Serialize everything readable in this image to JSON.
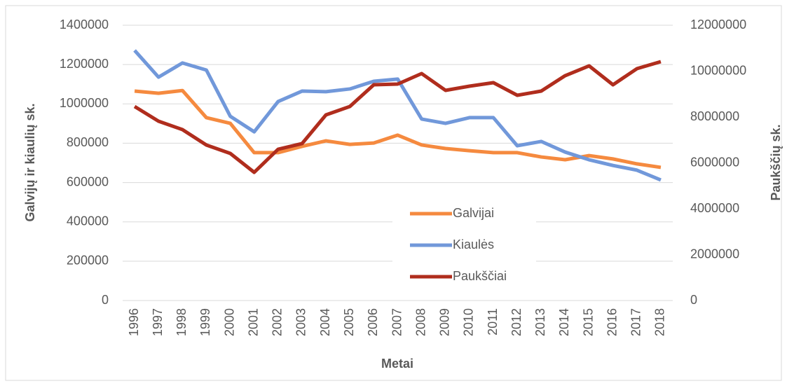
{
  "chart_data": {
    "type": "line",
    "x_label": "Metai",
    "y_label": "Galvijų ir kiaulių sk.",
    "y2_label": "Paukščių sk.",
    "categories": [
      "1996",
      "1997",
      "1998",
      "1999",
      "2000",
      "2001",
      "2002",
      "2003",
      "2004",
      "2005",
      "2006",
      "2007",
      "2008",
      "2009",
      "2010",
      "2011",
      "2012",
      "2013",
      "2014",
      "2015",
      "2016",
      "2017",
      "2018"
    ],
    "ylim": [
      0,
      1400000
    ],
    "yticks": [
      0,
      200000,
      400000,
      600000,
      800000,
      1000000,
      1200000,
      1400000
    ],
    "y2lim": [
      0,
      12000000
    ],
    "y2ticks": [
      0,
      2000000,
      4000000,
      6000000,
      8000000,
      10000000,
      12000000
    ],
    "grid": true,
    "legend": "center",
    "series": [
      {
        "name": "Galvijai",
        "color": "#f58a3f",
        "values": [
          1065000,
          1054000,
          1068000,
          930000,
          901000,
          752000,
          752000,
          784000,
          812000,
          794000,
          801000,
          841000,
          791000,
          773000,
          762000,
          752000,
          752000,
          730000,
          716000,
          737000,
          720000,
          695000,
          677000
        ]
      },
      {
        "name": "Kiaulės",
        "color": "#7198da",
        "values": [
          1272000,
          1136000,
          1208000,
          1172000,
          937000,
          858000,
          1012000,
          1065000,
          1062000,
          1076000,
          1115000,
          1126000,
          923000,
          901000,
          930000,
          930000,
          787000,
          809000,
          755000,
          716000,
          687000,
          663000,
          613000
        ]
      },
      {
        "name": "Paukščiai",
        "color": "#b02d1d",
        "axis": "y2",
        "values": [
          8458000,
          7817000,
          7450000,
          6779000,
          6412000,
          5588000,
          6595000,
          6840000,
          8092000,
          8458000,
          9404000,
          9435000,
          9893000,
          9160000,
          9343000,
          9496000,
          8946000,
          9130000,
          9801000,
          10229000,
          9404000,
          10106000,
          10412000
        ]
      }
    ]
  }
}
